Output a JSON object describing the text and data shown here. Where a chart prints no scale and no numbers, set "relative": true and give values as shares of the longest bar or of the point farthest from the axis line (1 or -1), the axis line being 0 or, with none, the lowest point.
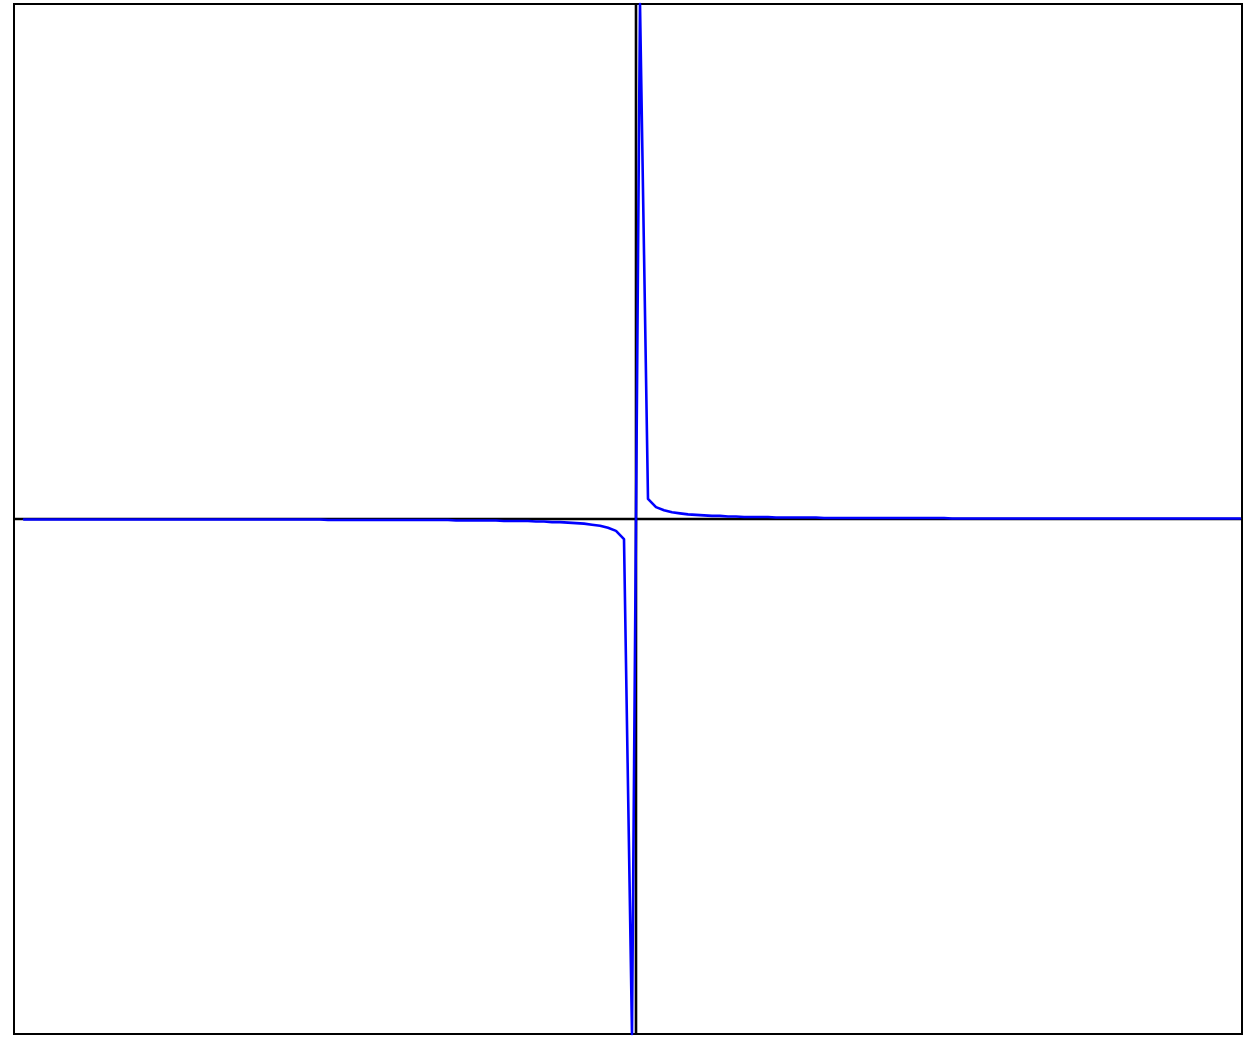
{
  "chart_data": {
    "type": "line",
    "relative": true,
    "categories": [
      null,
      null,
      null,
      null,
      null,
      null,
      null,
      null,
      null,
      null,
      null,
      null,
      null,
      null,
      null,
      null,
      null,
      null,
      null,
      null,
      null,
      null,
      null,
      null,
      null,
      null,
      null,
      null,
      null,
      null,
      null,
      null,
      null,
      null,
      null,
      null,
      null,
      null,
      null,
      null,
      null,
      null,
      null,
      null,
      null,
      null,
      null,
      null,
      null,
      null,
      null,
      null,
      null,
      null,
      null,
      null,
      null,
      null,
      null,
      null,
      null,
      null,
      null,
      null,
      null,
      null,
      null,
      null,
      null,
      null,
      null,
      null,
      null,
      null,
      null,
      null,
      null,
      null,
      null,
      null,
      null,
      null,
      null,
      null,
      null,
      null,
      null,
      null,
      null,
      null,
      null,
      null,
      null,
      null,
      null,
      null,
      null,
      null,
      null,
      null,
      null,
      null,
      null,
      null,
      null,
      null,
      null,
      null,
      null,
      null,
      null,
      null,
      null,
      null,
      null,
      null,
      null,
      null,
      null,
      null,
      null,
      null,
      null,
      null,
      null,
      null,
      null,
      null,
      null,
      null,
      null,
      null,
      null,
      null,
      null,
      null,
      null,
      null,
      null,
      null,
      null,
      null,
      null,
      null,
      null,
      null,
      null,
      null,
      null,
      null,
      null,
      null,
      null
    ],
    "series": [
      {
        "color": "#0000ff",
        "values": [
          -0.001,
          -0.001,
          -0.001,
          -0.001,
          -0.001,
          -0.001,
          -0.001,
          -0.001,
          -0.001,
          -0.001,
          -0.001,
          -0.001,
          -0.001,
          -0.001,
          -0.001,
          -0.001,
          -0.001,
          -0.001,
          -0.001,
          -0.001,
          -0.001,
          -0.001,
          -0.001,
          -0.001,
          -0.001,
          -0.001,
          -0.001,
          -0.001,
          -0.001,
          -0.001,
          -0.001,
          -0.001,
          -0.001,
          -0.001,
          -0.001,
          -0.001,
          -0.001,
          -0.001,
          -0.002,
          -0.002,
          -0.002,
          -0.002,
          -0.002,
          -0.002,
          -0.002,
          -0.002,
          -0.002,
          -0.002,
          -0.002,
          -0.002,
          -0.002,
          -0.002,
          -0.002,
          -0.002,
          -0.003,
          -0.003,
          -0.003,
          -0.003,
          -0.003,
          -0.003,
          -0.004,
          -0.004,
          -0.004,
          -0.004,
          -0.005,
          -0.005,
          -0.006,
          -0.006,
          -0.007,
          -0.008,
          -0.009,
          -0.011,
          -0.013,
          -0.017,
          -0.023,
          -0.039,
          -1,
          1,
          0.039,
          0.023,
          0.017,
          0.013,
          0.011,
          0.009,
          0.008,
          0.007,
          0.006,
          0.006,
          0.005,
          0.005,
          0.004,
          0.004,
          0.004,
          0.004,
          0.003,
          0.003,
          0.003,
          0.003,
          0.003,
          0.003,
          0.002,
          0.002,
          0.002,
          0.002,
          0.002,
          0.002,
          0.002,
          0.002,
          0.002,
          0.002,
          0.002,
          0.002,
          0.002,
          0.002,
          0.002,
          0.002,
          0.001,
          0.001,
          0.001,
          0.001,
          0.001,
          0.001,
          0.001,
          0.001,
          0.001,
          0.001,
          0.001,
          0.001,
          0.001,
          0.001,
          0.001,
          0.001,
          0.001,
          0.001,
          0.001,
          0.001,
          0.001,
          0.001,
          0.001,
          0.001,
          0.001,
          0.001,
          0.001,
          0.001,
          0.001,
          0.001,
          0.001,
          0.001,
          0.001,
          0.001,
          0.001,
          0.001,
          0.001
        ]
      }
    ]
  }
}
